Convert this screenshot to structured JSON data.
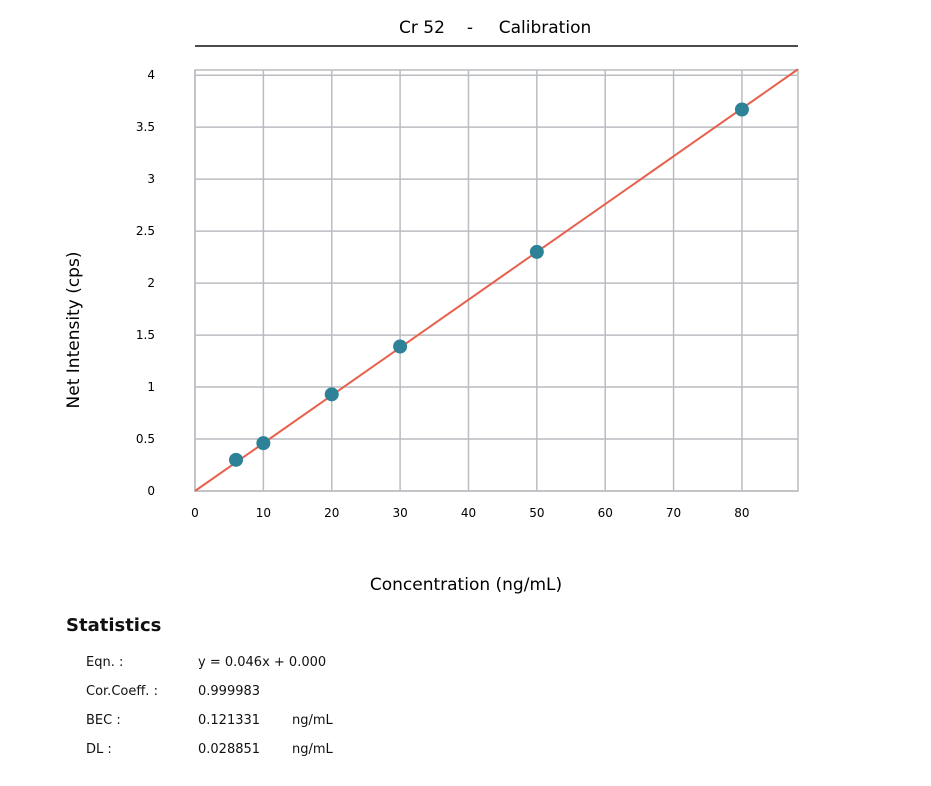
{
  "chart_data": {
    "type": "scatter",
    "title": {
      "analyte": "Cr 52",
      "separator": "-",
      "text": "Calibration"
    },
    "xlabel": "Concentration (ng/mL)",
    "ylabel": "Net Intensity (cps)",
    "xlim": [
      0,
      88.2
    ],
    "ylim": [
      0,
      4.05
    ],
    "xticks": [
      0,
      10,
      20,
      30,
      40,
      50,
      60,
      70,
      80
    ],
    "yticks": [
      0,
      0.5,
      1,
      1.5,
      2,
      2.5,
      3,
      3.5,
      4
    ],
    "grid": true,
    "points": [
      {
        "x": 6,
        "y": 0.3
      },
      {
        "x": 10,
        "y": 0.46
      },
      {
        "x": 20,
        "y": 0.93
      },
      {
        "x": 30,
        "y": 1.39
      },
      {
        "x": 50,
        "y": 2.3
      },
      {
        "x": 80,
        "y": 3.67
      }
    ],
    "fit": {
      "slope": 0.046,
      "intercept": 0.0
    },
    "colors": {
      "points": "#2e8298",
      "fit": "#e8604c",
      "grid": "#b9bcc0"
    }
  },
  "statistics": {
    "heading": "Statistics",
    "rows": [
      {
        "key": "Eqn. :",
        "value": "y = 0.046x + 0.000",
        "unit": ""
      },
      {
        "key": "Cor.Coeff. :",
        "value": "0.999983",
        "unit": ""
      },
      {
        "key": "BEC :",
        "value": "0.121331",
        "unit": "ng/mL"
      },
      {
        "key": "DL :",
        "value": "0.028851",
        "unit": "ng/mL"
      }
    ]
  }
}
